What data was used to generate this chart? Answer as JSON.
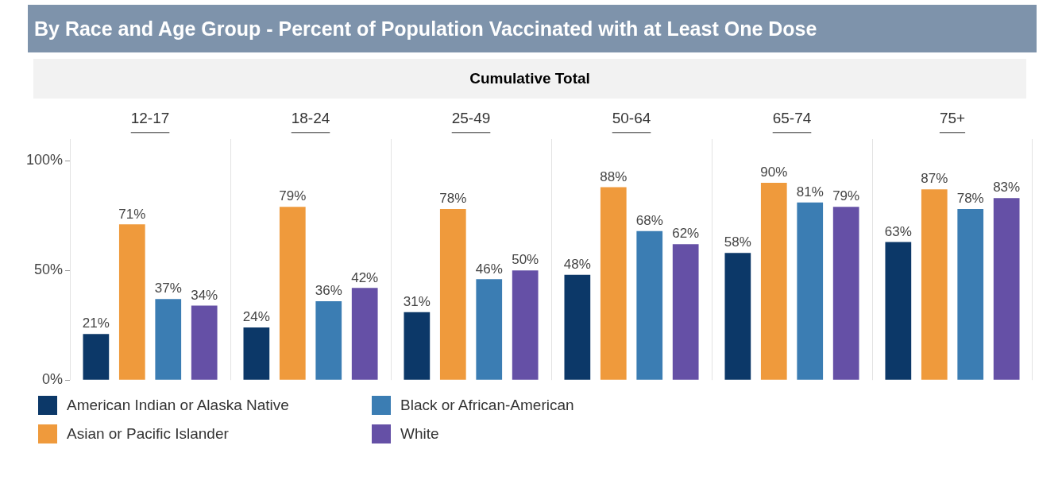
{
  "chart_data": {
    "type": "bar",
    "title": "By Race and Age Group - Percent of Population Vaccinated with at Least One Dose",
    "subtitle": "Cumulative Total",
    "categories": [
      "12-17",
      "18-24",
      "25-49",
      "50-64",
      "65-74",
      "75+"
    ],
    "series": [
      {
        "name": "American Indian or Alaska Native",
        "color": "#0c3868",
        "values": [
          21,
          24,
          31,
          48,
          58,
          63
        ],
        "value_labels": [
          "21%",
          "24%",
          "31%",
          "48%",
          "58%",
          "63%"
        ]
      },
      {
        "name": "Asian or Pacific Islander",
        "color": "#ef9a3c",
        "values": [
          71,
          79,
          78,
          88,
          90,
          87
        ],
        "value_labels": [
          "71%",
          "79%",
          "78%",
          "88%",
          "90%",
          "87%"
        ]
      },
      {
        "name": "Black or African-American",
        "color": "#3b7db3",
        "values": [
          37,
          36,
          46,
          68,
          81,
          78
        ],
        "value_labels": [
          "37%",
          "36%",
          "46%",
          "68%",
          "81%",
          "78%"
        ]
      },
      {
        "name": "White",
        "color": "#6550a6",
        "values": [
          34,
          42,
          50,
          62,
          79,
          83
        ],
        "value_labels": [
          "34%",
          "42%",
          "50%",
          "62%",
          "79%",
          "83%"
        ]
      }
    ],
    "ylim": [
      0,
      110
    ],
    "yticks": [
      {
        "value": 0,
        "label": "0%"
      },
      {
        "value": 50,
        "label": "50%"
      },
      {
        "value": 100,
        "label": "100%"
      }
    ],
    "grid": "x",
    "legend": "bottom"
  }
}
